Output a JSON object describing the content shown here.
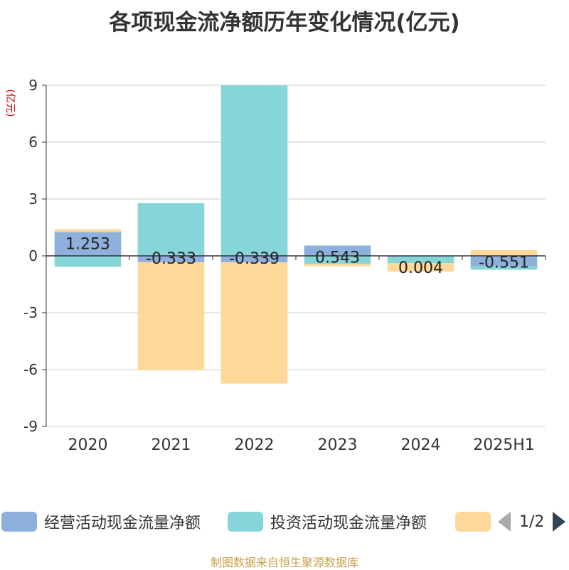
{
  "title": "各项现金流净额历年变化情况(亿元)",
  "source": "制图数据来自恒生聚源数据库",
  "pager": "1/2",
  "chart_data": {
    "type": "bar",
    "stacked": true,
    "categories": [
      "2020",
      "2021",
      "2022",
      "2023",
      "2024",
      "2025H1"
    ],
    "ylabel": "(亿元)",
    "ylim": [
      -9,
      9
    ],
    "yticks": [
      9,
      6,
      3,
      0,
      -3,
      -6,
      -9
    ],
    "grid": true,
    "legend_position": "bottom",
    "series": [
      {
        "name": "经营活动现金流量净额",
        "color": "#8eb0dc",
        "values": [
          1.253,
          -0.333,
          -0.339,
          0.543,
          0.004,
          -0.551
        ]
      },
      {
        "name": "投资活动现金流量净额",
        "color": "#86d5d8",
        "values": [
          -0.58,
          2.78,
          9.0,
          -0.42,
          -0.38,
          -0.18
        ]
      },
      {
        "name": "",
        "color": "#fed898",
        "values": [
          0.15,
          -5.7,
          -6.4,
          -0.12,
          -0.45,
          0.3
        ]
      }
    ],
    "data_labels": [
      "1.253",
      "-0.333",
      "-0.339",
      "0.543",
      "0.004",
      "-0.551"
    ]
  }
}
